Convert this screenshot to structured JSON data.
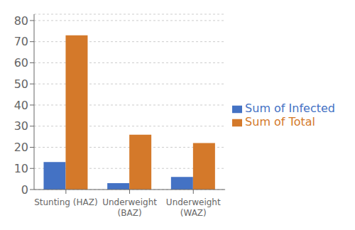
{
  "chart_data": {
    "type": "bar",
    "categories": [
      "Stunting (HAZ)",
      "Underweight\n(BAZ)",
      "Underweight\n(WAZ)"
    ],
    "series": [
      {
        "name": "Sum of Infected",
        "color": "#4472C4",
        "values": [
          13,
          3,
          6
        ]
      },
      {
        "name": "Sum of Total",
        "color": "#D4792A",
        "values": [
          73,
          26,
          22
        ]
      }
    ],
    "ylim": [
      0,
      83
    ],
    "yticks": [
      0,
      10,
      20,
      30,
      40,
      50,
      60,
      70,
      80
    ],
    "grid": true,
    "legend": "right"
  }
}
